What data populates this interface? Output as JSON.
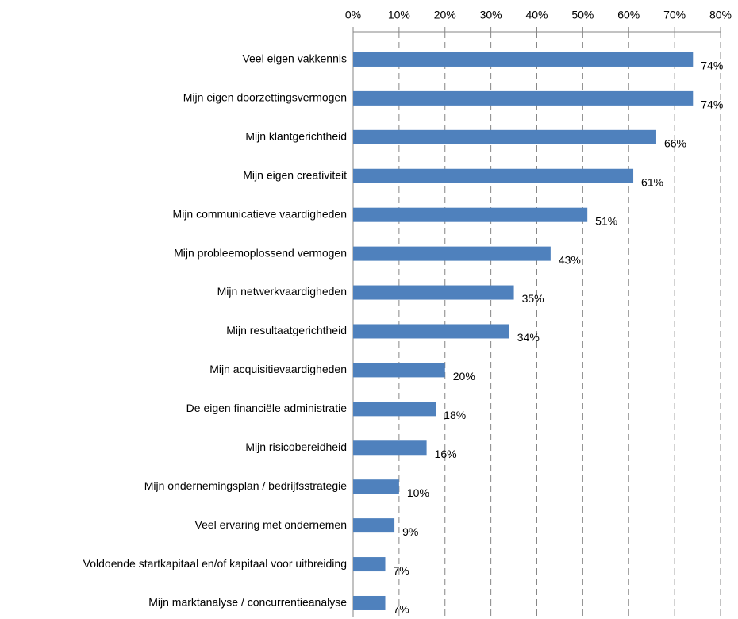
{
  "chart_data": {
    "type": "bar",
    "orientation": "horizontal",
    "categories": [
      "Veel eigen vakkennis",
      "Mijn eigen doorzettingsvermogen",
      "Mijn klantgerichtheid",
      "Mijn eigen creativiteit",
      "Mijn communicatieve vaardigheden",
      "Mijn probleemoplossend vermogen",
      "Mijn netwerkvaardigheden",
      "Mijn resultaatgerichtheid",
      "Mijn acquisitievaardigheden",
      "De eigen financiële administratie",
      "Mijn risicobereidheid",
      "Mijn ondernemingsplan / bedrijfsstrategie",
      "Veel ervaring met ondernemen",
      "Voldoende startkapitaal  en/of kapitaal voor uitbreiding",
      "Mijn marktanalyse  / concurrentieanalyse"
    ],
    "values": [
      74,
      74,
      66,
      61,
      51,
      43,
      35,
      34,
      20,
      18,
      16,
      10,
      9,
      7,
      7
    ],
    "value_labels": [
      "74%",
      "74%",
      "66%",
      "61%",
      "51%",
      "43%",
      "35%",
      "34%",
      "20%",
      "18%",
      "16%",
      "10%",
      "9%",
      "7%",
      "7%"
    ],
    "color": "#4f81bd",
    "xlim": [
      0,
      80
    ],
    "xticks": [
      {
        "value": 0,
        "label": "0%"
      },
      {
        "value": 10,
        "label": "10%"
      },
      {
        "value": 20,
        "label": "20%"
      },
      {
        "value": 30,
        "label": "30%"
      },
      {
        "value": 40,
        "label": "40%"
      },
      {
        "value": 50,
        "label": "50%"
      },
      {
        "value": 60,
        "label": "60%"
      },
      {
        "value": 70,
        "label": "70%"
      },
      {
        "value": 80,
        "label": "80%"
      }
    ],
    "grid": true
  }
}
